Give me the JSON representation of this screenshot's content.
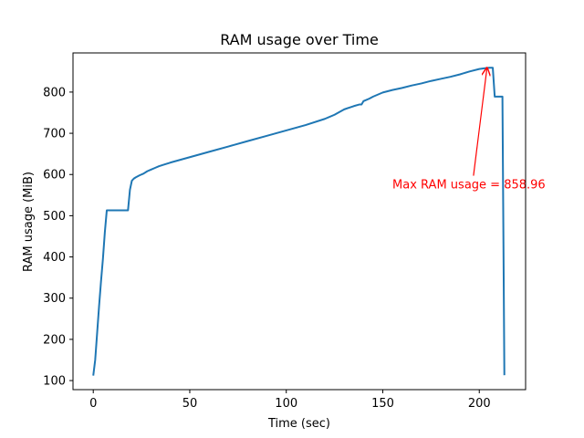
{
  "chart_data": {
    "type": "line",
    "title": "RAM usage over Time",
    "xlabel": "Time (sec)",
    "ylabel": "RAM usage (MiB)",
    "xlim": [
      -10.5,
      224
    ],
    "ylim": [
      78,
      895
    ],
    "xticks": [
      0,
      50,
      100,
      150,
      200
    ],
    "yticks": [
      100,
      200,
      300,
      400,
      500,
      600,
      700,
      800
    ],
    "grid": false,
    "line_color": "#1f77b4",
    "series": [
      {
        "x": [
          0,
          1,
          2,
          3,
          4,
          5,
          6,
          7,
          8,
          9,
          10,
          11,
          12,
          13,
          14,
          15,
          16,
          17,
          18,
          19,
          20,
          21,
          22,
          24,
          26,
          28,
          30,
          32,
          34,
          36,
          40,
          50,
          60,
          70,
          80,
          90,
          100,
          110,
          120,
          125,
          130,
          135,
          138,
          139,
          140,
          141,
          143,
          145,
          150,
          155,
          160,
          165,
          170,
          175,
          180,
          185,
          190,
          195,
          200,
          203,
          205,
          207,
          208,
          209,
          210,
          211,
          212,
          213
        ],
        "y": [
          112,
          150,
          215,
          280,
          340,
          395,
          460,
          513,
          513,
          513,
          513,
          513,
          513,
          513,
          513,
          513,
          513,
          513,
          513,
          563,
          585,
          590,
          593,
          598,
          602,
          608,
          612,
          616,
          620,
          623,
          629,
          642,
          655,
          668,
          681,
          694,
          707,
          720,
          735,
          745,
          758,
          766,
          770,
          770,
          778,
          780,
          784,
          789,
          799,
          805,
          810,
          816,
          821,
          827,
          832,
          837,
          843,
          850,
          856,
          858,
          859,
          859,
          789,
          789,
          789,
          789,
          789,
          113
        ]
      }
    ],
    "annotations": [
      {
        "text": "Max RAM usage = 858.96",
        "color": "#ff0000",
        "arrow_to": [
          204,
          859
        ],
        "arrow_from": [
          197,
          597
        ],
        "text_at": [
          155,
          566
        ]
      }
    ]
  }
}
